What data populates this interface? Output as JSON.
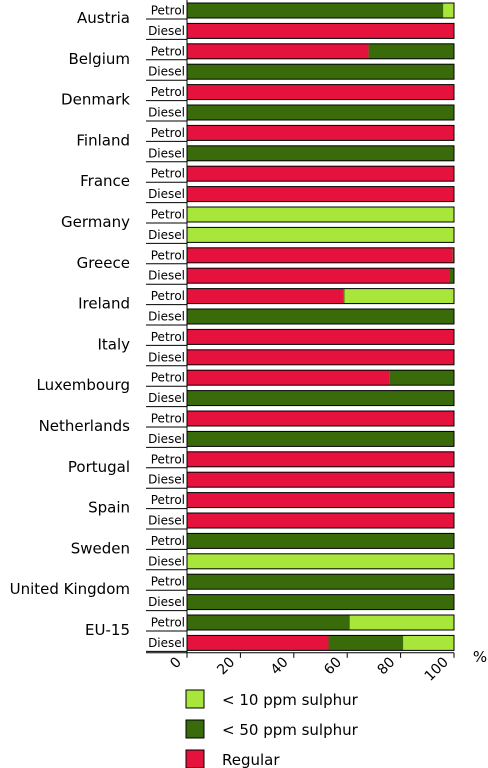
{
  "chart_data": {
    "type": "bar",
    "orientation": "horizontal",
    "stacked": true,
    "xlabel": "%",
    "xlim": [
      0,
      100
    ],
    "xticks": [
      0,
      20,
      40,
      60,
      80,
      100
    ],
    "grid": false,
    "legend_placement": "bottom",
    "colors": {
      "Regular": "#e5123d",
      "< 50 ppm sulphur": "#3a6b0a",
      "< 10 ppm sulphur": "#a8e63c"
    },
    "legend": [
      "< 10 ppm sulphur",
      "< 50 ppm sulphur",
      "Regular"
    ],
    "stack_order": [
      "Regular",
      "< 50 ppm sulphur",
      "< 10 ppm sulphur"
    ],
    "groups": [
      {
        "country": "Austria",
        "bars": [
          {
            "fuel": "Petrol",
            "Regular": 0,
            "< 50 ppm sulphur": 96,
            "< 10 ppm sulphur": 4
          },
          {
            "fuel": "Diesel",
            "Regular": 100,
            "< 50 ppm sulphur": 0,
            "< 10 ppm sulphur": 0
          }
        ]
      },
      {
        "country": "Belgium",
        "bars": [
          {
            "fuel": "Petrol",
            "Regular": 68,
            "< 50 ppm sulphur": 32,
            "< 10 ppm sulphur": 0
          },
          {
            "fuel": "Diesel",
            "Regular": 0,
            "< 50 ppm sulphur": 100,
            "< 10 ppm sulphur": 0
          }
        ]
      },
      {
        "country": "Denmark",
        "bars": [
          {
            "fuel": "Petrol",
            "Regular": 100,
            "< 50 ppm sulphur": 0,
            "< 10 ppm sulphur": 0
          },
          {
            "fuel": "Diesel",
            "Regular": 0,
            "< 50 ppm sulphur": 100,
            "< 10 ppm sulphur": 0
          }
        ]
      },
      {
        "country": "Finland",
        "bars": [
          {
            "fuel": "Petrol",
            "Regular": 100,
            "< 50 ppm sulphur": 0,
            "< 10 ppm sulphur": 0
          },
          {
            "fuel": "Diesel",
            "Regular": 0,
            "< 50 ppm sulphur": 100,
            "< 10 ppm sulphur": 0
          }
        ]
      },
      {
        "country": "France",
        "bars": [
          {
            "fuel": "Petrol",
            "Regular": 100,
            "< 50 ppm sulphur": 0,
            "< 10 ppm sulphur": 0
          },
          {
            "fuel": "Diesel",
            "Regular": 100,
            "< 50 ppm sulphur": 0,
            "< 10 ppm sulphur": 0
          }
        ]
      },
      {
        "country": "Germany",
        "bars": [
          {
            "fuel": "Petrol",
            "Regular": 0,
            "< 50 ppm sulphur": 0,
            "< 10 ppm sulphur": 100
          },
          {
            "fuel": "Diesel",
            "Regular": 0,
            "< 50 ppm sulphur": 0,
            "< 10 ppm sulphur": 100
          }
        ]
      },
      {
        "country": "Greece",
        "bars": [
          {
            "fuel": "Petrol",
            "Regular": 99.5,
            "< 50 ppm sulphur": 0.5,
            "< 10 ppm sulphur": 0
          },
          {
            "fuel": "Diesel",
            "Regular": 98.5,
            "< 50 ppm sulphur": 1.5,
            "< 10 ppm sulphur": 0
          }
        ]
      },
      {
        "country": "Ireland",
        "bars": [
          {
            "fuel": "Petrol",
            "Regular": 58.5,
            "< 50 ppm sulphur": 0.5,
            "< 10 ppm sulphur": 41
          },
          {
            "fuel": "Diesel",
            "Regular": 0,
            "< 50 ppm sulphur": 100,
            "< 10 ppm sulphur": 0
          }
        ]
      },
      {
        "country": "Italy",
        "bars": [
          {
            "fuel": "Petrol",
            "Regular": 100,
            "< 50 ppm sulphur": 0,
            "< 10 ppm sulphur": 0
          },
          {
            "fuel": "Diesel",
            "Regular": 100,
            "< 50 ppm sulphur": 0,
            "< 10 ppm sulphur": 0
          }
        ]
      },
      {
        "country": "Luxembourg",
        "bars": [
          {
            "fuel": "Petrol",
            "Regular": 76,
            "< 50 ppm sulphur": 24,
            "< 10 ppm sulphur": 0
          },
          {
            "fuel": "Diesel",
            "Regular": 0,
            "< 50 ppm sulphur": 100,
            "< 10 ppm sulphur": 0
          }
        ]
      },
      {
        "country": "Netherlands",
        "bars": [
          {
            "fuel": "Petrol",
            "Regular": 100,
            "< 50 ppm sulphur": 0,
            "< 10 ppm sulphur": 0
          },
          {
            "fuel": "Diesel",
            "Regular": 0,
            "< 50 ppm sulphur": 100,
            "< 10 ppm sulphur": 0
          }
        ]
      },
      {
        "country": "Portugal",
        "bars": [
          {
            "fuel": "Petrol",
            "Regular": 100,
            "< 50 ppm sulphur": 0,
            "< 10 ppm sulphur": 0
          },
          {
            "fuel": "Diesel",
            "Regular": 100,
            "< 50 ppm sulphur": 0,
            "< 10 ppm sulphur": 0
          }
        ]
      },
      {
        "country": "Spain",
        "bars": [
          {
            "fuel": "Petrol",
            "Regular": 100,
            "< 50 ppm sulphur": 0,
            "< 10 ppm sulphur": 0
          },
          {
            "fuel": "Diesel",
            "Regular": 100,
            "< 50 ppm sulphur": 0,
            "< 10 ppm sulphur": 0
          }
        ]
      },
      {
        "country": "Sweden",
        "bars": [
          {
            "fuel": "Petrol",
            "Regular": 0,
            "< 50 ppm sulphur": 100,
            "< 10 ppm sulphur": 0
          },
          {
            "fuel": "Diesel",
            "Regular": 0,
            "< 50 ppm sulphur": 0,
            "< 10 ppm sulphur": 100
          }
        ]
      },
      {
        "country": "United Kingdom",
        "bars": [
          {
            "fuel": "Petrol",
            "Regular": 0,
            "< 50 ppm sulphur": 100,
            "< 10 ppm sulphur": 0
          },
          {
            "fuel": "Diesel",
            "Regular": 0,
            "< 50 ppm sulphur": 100,
            "< 10 ppm sulphur": 0
          }
        ]
      },
      {
        "country": "EU-15",
        "bars": [
          {
            "fuel": "Petrol",
            "Regular": 0,
            "< 50 ppm sulphur": 61,
            "< 10 ppm sulphur": 39
          },
          {
            "fuel": "Diesel",
            "Regular": 53,
            "< 50 ppm sulphur": 28,
            "< 10 ppm sulphur": 19
          }
        ]
      }
    ]
  }
}
